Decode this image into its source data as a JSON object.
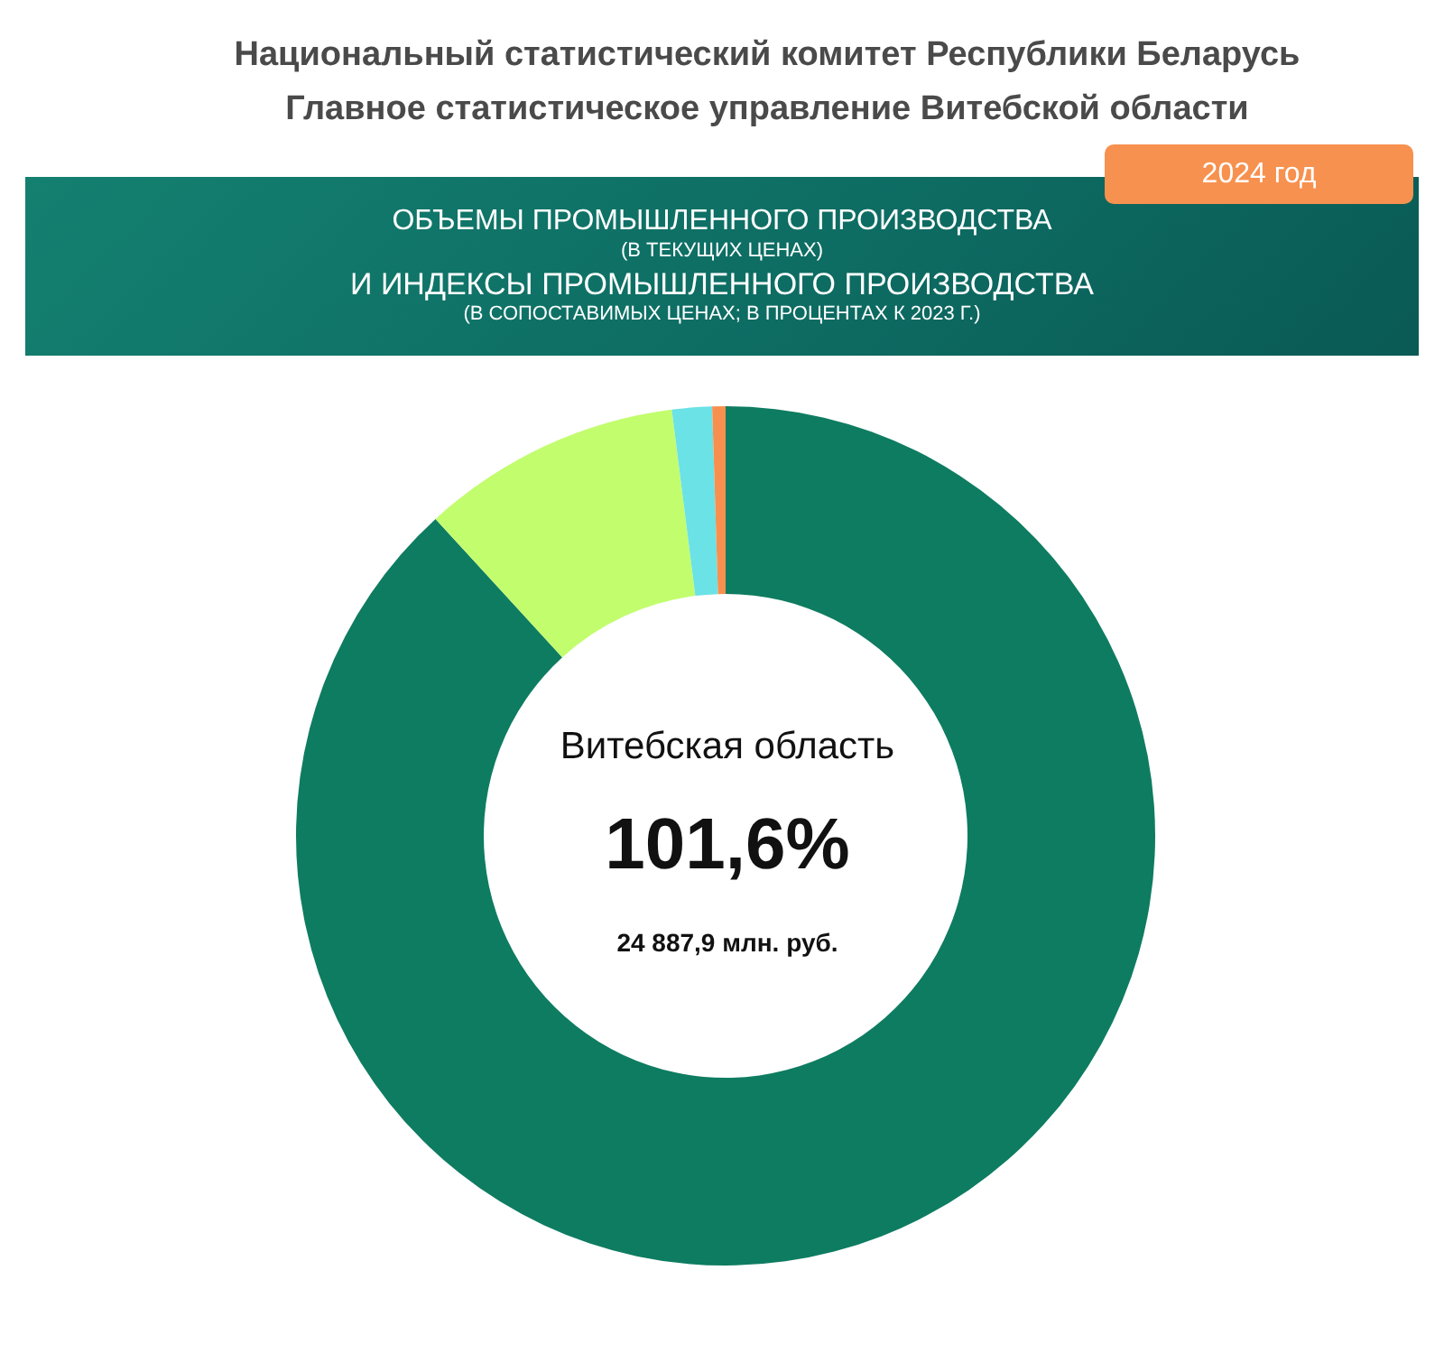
{
  "chart_data": {
    "type": "donut",
    "title": "Национальный статистический комитет Республики Беларусь",
    "subtitle": "Главное статистическое управление Витебской области",
    "annotations": [
      "2024 год",
      "ОБЪЕМЫ ПРОМЫШЛЕННОГО ПРОИЗВОДСТВА",
      "(В ТЕКУЩИХ ЦЕНАХ)",
      "И ИНДЕКСЫ ПРОМЫШЛЕННОГО ПРОИЗВОДСТВА",
      "(В СОПОСТАВИМЫХ ЦЕНАХ; В ПРОЦЕНТАХ К 2023 Г.)",
      "Витебская область",
      "101,6%",
      "24 887,9 млн. руб."
    ],
    "categories": [
      null,
      null,
      null,
      null
    ],
    "values": [
      88.2,
      9.8,
      1.5,
      0.5
    ],
    "colors": [
      "#0e7c61",
      "#c2fd6e",
      "#6be2e6",
      "#f7904f"
    ]
  }
}
